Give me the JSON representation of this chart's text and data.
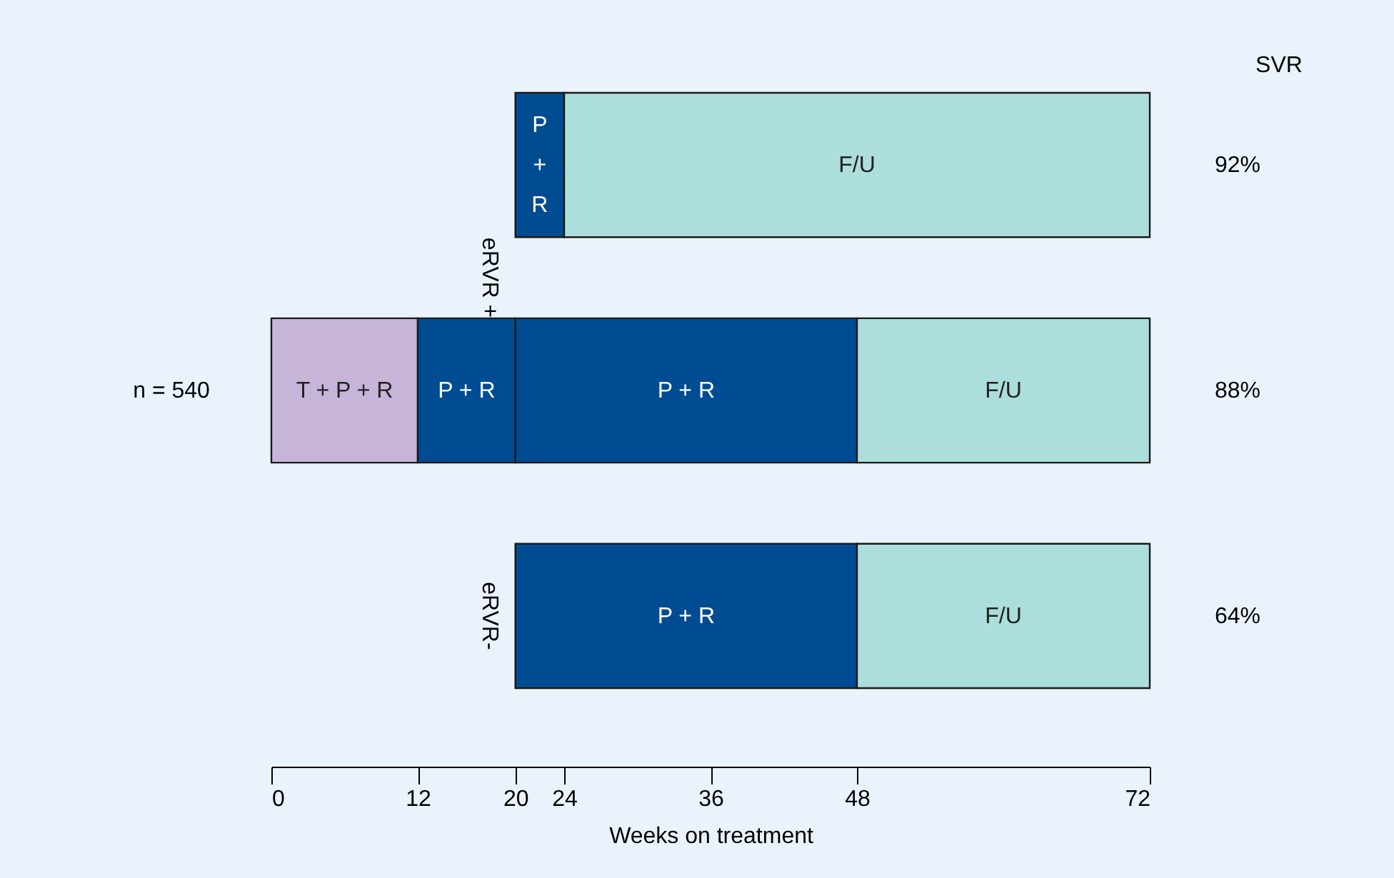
{
  "chart_data": {
    "type": "bar",
    "orientation": "horizontal",
    "xlabel": "Weeks on treatment",
    "categories": [
      "92%",
      "88%",
      "64%"
    ],
    "ylabel": "SVR",
    "series": [
      {
        "name": "T + P + R",
        "color": "#c6b5d9",
        "values": [
          null,
          12,
          null
        ],
        "base": [
          null,
          0,
          null
        ]
      },
      {
        "name": "P + R",
        "color": "#004c93",
        "values": [
          4,
          8,
          28
        ],
        "base": [
          20,
          12,
          20
        ]
      },
      {
        "name": "P + R",
        "color": "#004c93",
        "values": [
          null,
          28,
          null
        ],
        "base": [
          null,
          20,
          null
        ]
      },
      {
        "name": "F/U",
        "color": "#acdedb",
        "values": [
          48,
          24,
          24
        ],
        "base": [
          24,
          48,
          48
        ]
      }
    ],
    "xlim": [
      0,
      72
    ],
    "xticks": [
      0,
      12,
      20,
      24,
      36,
      48,
      72
    ],
    "grid": false,
    "annotations": [
      "eRVR +",
      "eRVR-",
      "n = 540"
    ]
  }
}
